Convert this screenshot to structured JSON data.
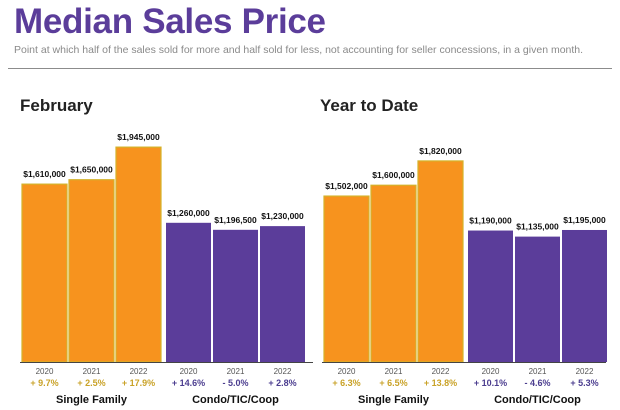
{
  "header": {
    "title": "Median Sales Price",
    "subtitle": "Point at which half of the sales sold for more and half sold for less, not accounting for seller concessions, in a given month."
  },
  "colors": {
    "title": "#5b3d9a",
    "single_family": "#f7931e",
    "single_family_border": "#d4b22a",
    "condo": "#5b3d9a",
    "pct_single_family": "#c9a227",
    "pct_condo": "#4b3d8f",
    "axis": "#444444"
  },
  "chart_data": [
    {
      "type": "bar",
      "title": "February",
      "ylim": [
        0,
        2100000
      ],
      "groups": [
        {
          "name": "Single Family",
          "categories": [
            "2020",
            "2021",
            "2022"
          ],
          "values": [
            1610000,
            1650000,
            1945000
          ],
          "value_labels": [
            "$1,610,000",
            "$1,650,000",
            "$1,945,000"
          ],
          "changes": [
            "+ 9.7%",
            "+ 2.5%",
            "+ 17.9%"
          ]
        },
        {
          "name": "Condo/TIC/Coop",
          "categories": [
            "2020",
            "2021",
            "2022"
          ],
          "values": [
            1260000,
            1196500,
            1230000
          ],
          "value_labels": [
            "$1,260,000",
            "$1,196,500",
            "$1,230,000"
          ],
          "changes": [
            "+ 14.6%",
            "- 5.0%",
            "+ 2.8%"
          ]
        }
      ]
    },
    {
      "type": "bar",
      "title": "Year to Date",
      "ylim": [
        0,
        2100000
      ],
      "groups": [
        {
          "name": "Single Family",
          "categories": [
            "2020",
            "2021",
            "2022"
          ],
          "values": [
            1502000,
            1600000,
            1820000
          ],
          "value_labels": [
            "$1,502,000",
            "$1,600,000",
            "$1,820,000"
          ],
          "changes": [
            "+ 6.3%",
            "+ 6.5%",
            "+ 13.8%"
          ]
        },
        {
          "name": "Condo/TIC/Coop",
          "categories": [
            "2020",
            "2021",
            "2022"
          ],
          "values": [
            1190000,
            1135000,
            1195000
          ],
          "value_labels": [
            "$1,190,000",
            "$1,135,000",
            "$1,195,000"
          ],
          "changes": [
            "+ 10.1%",
            "- 4.6%",
            "+ 5.3%"
          ]
        }
      ]
    }
  ]
}
